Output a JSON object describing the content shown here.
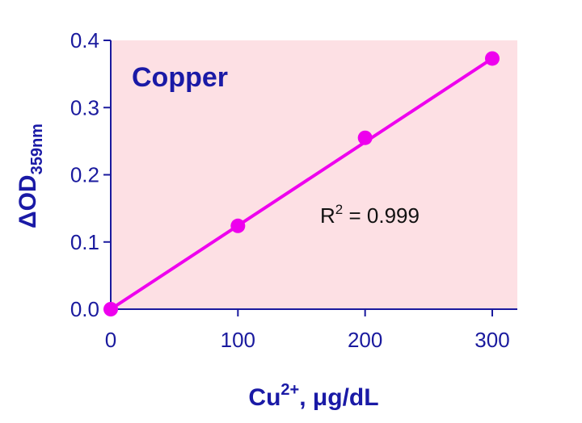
{
  "chart_data": {
    "type": "scatter",
    "title": "Copper",
    "xlabel": {
      "base": "Cu",
      "superscript": "2+",
      "rest": ", μg/dL"
    },
    "ylabel": {
      "base": "ΔOD",
      "subscript": "359nm"
    },
    "x_ticks": [
      "0",
      "100",
      "200",
      "300"
    ],
    "y_ticks": [
      "0.0",
      "0.1",
      "0.2",
      "0.3",
      "0.4"
    ],
    "xlim": [
      0,
      300
    ],
    "ylim": [
      0,
      0.4
    ],
    "grid": false,
    "series": [
      {
        "x": [
          0,
          100,
          200,
          300
        ],
        "y": [
          0.0,
          0.124,
          0.255,
          0.373
        ],
        "fit": {
          "type": "linear",
          "x": [
            0,
            300
          ],
          "y": [
            0.0,
            0.373
          ]
        }
      }
    ],
    "annotation": {
      "base": "R",
      "superscript": "2",
      "rest": " = 0.999"
    },
    "colors": {
      "plot_background": "#fde0e4",
      "series": "#ee00ee",
      "axis": "#1a1a9e",
      "text": "#1a1aa6"
    }
  }
}
